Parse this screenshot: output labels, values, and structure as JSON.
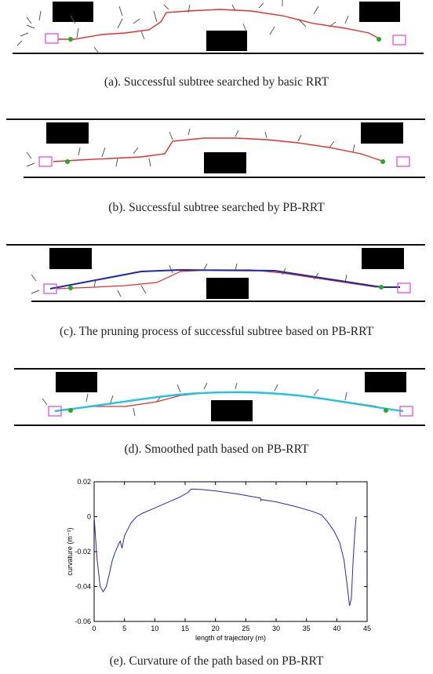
{
  "figures": [
    {
      "caption": "(a). Successful subtree searched by basic RRT"
    },
    {
      "caption": "(b). Successful subtree searched by PB-RRT"
    },
    {
      "caption": "(c). The pruning process of successful subtree based on PB-RRT"
    },
    {
      "caption": "(d). Smoothed path based on PB-RRT"
    },
    {
      "caption": "(e). Curvature of the path based on PB-RRT"
    }
  ],
  "colors": {
    "tree_branch": "#555555",
    "rrt_path": "#e03030",
    "pruned_path": "#1f2a9e",
    "smoothed_path": "#22c3e0",
    "marker": "#dd44dd",
    "node": "#22aa22",
    "curve": "#2a2aa0"
  },
  "chart_data": {
    "type": "line",
    "title": "",
    "xlabel": "length of trajectory (m)",
    "ylabel": "curvature (m⁻¹)",
    "xlim": [
      0,
      45
    ],
    "ylim": [
      -0.06,
      0.02
    ],
    "xticks": [
      "0",
      "5",
      "10",
      "15",
      "20",
      "25",
      "30",
      "35",
      "40",
      "45"
    ],
    "yticks": [
      "0.02",
      "0",
      "-0.02",
      "-0.04",
      "-0.06"
    ],
    "series": [
      {
        "x": [
          0,
          0.2,
          0.5,
          1.0,
          1.5,
          2.0,
          2.5,
          3.0,
          3.5,
          4.0,
          4.3,
          4.6,
          5.0,
          6.0,
          7.0,
          8.0,
          10.0,
          12.0,
          14.0,
          15.5,
          16.0,
          18.0,
          20.0,
          22.0,
          24.0,
          26.0,
          27.4,
          27.5,
          27.6,
          30.0,
          33.0,
          36.0,
          37.5,
          38.5,
          39.5,
          40.5,
          41.2,
          41.8,
          42.1,
          42.4,
          42.7,
          43.0,
          43.2
        ],
        "y": [
          0.0,
          -0.01,
          -0.025,
          -0.04,
          -0.043,
          -0.04,
          -0.033,
          -0.025,
          -0.02,
          -0.016,
          -0.014,
          -0.018,
          -0.011,
          -0.004,
          0.0,
          0.002,
          0.005,
          0.008,
          0.011,
          0.014,
          0.0158,
          0.0155,
          0.0148,
          0.0138,
          0.0128,
          0.0115,
          0.0107,
          0.0092,
          0.0098,
          0.0085,
          0.006,
          0.003,
          0.001,
          -0.003,
          -0.008,
          -0.015,
          -0.025,
          -0.042,
          -0.051,
          -0.047,
          -0.025,
          -0.008,
          0.0
        ]
      }
    ]
  }
}
